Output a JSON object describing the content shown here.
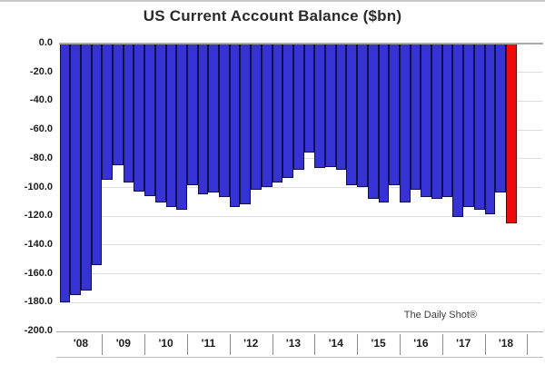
{
  "title": "US Current Account Balance ($bn)",
  "watermark": "The Daily Shot®",
  "chart_data": {
    "type": "bar",
    "title": "US Current Account Balance ($bn)",
    "unit": "$bn",
    "ylim": [
      -200,
      0
    ],
    "ytick_step": 20,
    "ytick_labels": [
      "0.0",
      "-20.0",
      "-40.0",
      "-60.0",
      "-80.0",
      "-100.0",
      "-120.0",
      "-140.0",
      "-160.0",
      "-180.0",
      "-200.0"
    ],
    "year_labels": [
      "'08",
      "'09",
      "'10",
      "'11",
      "'12",
      "'13",
      "'14",
      "'15",
      "'16",
      "'17",
      "'18"
    ],
    "quarters": [
      "2008Q1",
      "2008Q2",
      "2008Q3",
      "2008Q4",
      "2009Q1",
      "2009Q2",
      "2009Q3",
      "2009Q4",
      "2010Q1",
      "2010Q2",
      "2010Q3",
      "2010Q4",
      "2011Q1",
      "2011Q2",
      "2011Q3",
      "2011Q4",
      "2012Q1",
      "2012Q2",
      "2012Q3",
      "2012Q4",
      "2013Q1",
      "2013Q2",
      "2013Q3",
      "2013Q4",
      "2014Q1",
      "2014Q2",
      "2014Q3",
      "2014Q4",
      "2015Q1",
      "2015Q2",
      "2015Q3",
      "2015Q4",
      "2016Q1",
      "2016Q2",
      "2016Q3",
      "2016Q4",
      "2017Q1",
      "2017Q2",
      "2017Q3",
      "2017Q4",
      "2018Q1",
      "2018Q2",
      "2018Q3"
    ],
    "values": [
      -180,
      -175,
      -172,
      -154,
      -95,
      -85,
      -97,
      -103,
      -106,
      -111,
      -114,
      -116,
      -99,
      -105,
      -104,
      -107,
      -114,
      -112,
      -102,
      -100,
      -97,
      -94,
      -88,
      -76,
      -87,
      -86,
      -88,
      -99,
      -100,
      -108,
      -111,
      -99,
      -111,
      -102,
      -107,
      -108,
      -107,
      -121,
      -114,
      -116,
      -119,
      -104,
      -125
    ],
    "highlight_last_bar": true,
    "legend": "none",
    "grid": "horizontal",
    "colors": {
      "bar": "#3732d4",
      "bar_border": "#10104f",
      "highlight_bar": "#ee0a0a",
      "highlight_border": "#550505",
      "gridline": "#dedede",
      "zero_axis": "#a9a9a9",
      "text": "#1c1c1c"
    }
  }
}
